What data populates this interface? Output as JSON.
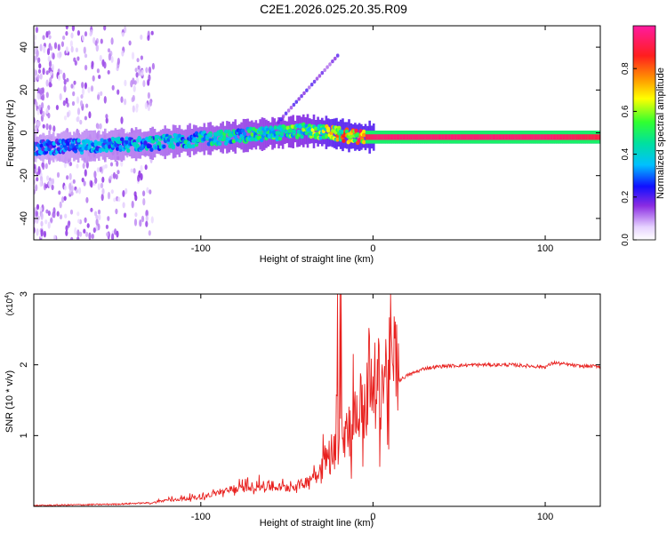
{
  "title": "C2E1.2026.025.20.35.R09",
  "chart_data": [
    {
      "type": "heatmap",
      "xlabel": "Height of straight line (km)",
      "ylabel": "Frequency (Hz)",
      "xlim": [
        -197,
        132
      ],
      "ylim": [
        -50,
        50
      ],
      "xticks": [
        -100,
        0,
        100
      ],
      "yticks": [
        -40,
        -20,
        0,
        20,
        40
      ],
      "colorbar": {
        "label": "Normalized spectral amplitude",
        "range": [
          0,
          1
        ],
        "ticks": [
          "0.0",
          "0.2",
          "0.4",
          "0.6",
          "0.8"
        ]
      },
      "ridge": {
        "x": [
          -197,
          -160,
          -130,
          -100,
          -70,
          -40,
          -25,
          -10,
          0,
          20,
          60,
          100,
          132
        ],
        "frequency": [
          -7,
          -6,
          -5,
          -3,
          -1,
          1,
          0,
          -2,
          -2,
          -2,
          -2,
          -2,
          -2
        ],
        "amplitude": [
          0.3,
          0.35,
          0.4,
          0.45,
          0.5,
          0.55,
          0.65,
          0.85,
          0.95,
          0.95,
          0.95,
          0.95,
          0.9
        ]
      }
    },
    {
      "type": "line",
      "xlabel": "Height of straight line (km)",
      "ylabel": "SNR (10 * v/v)",
      "y_multiplier": "(x10",
      "y_multiplier_exp": "4",
      "xlim": [
        -197,
        132
      ],
      "ylim": [
        0,
        3
      ],
      "xticks": [
        -100,
        0,
        100
      ],
      "yticks": [
        1,
        2,
        3
      ],
      "grid": false,
      "series": [
        {
          "color": "#e8201e",
          "x": [
            -197,
            -175,
            -150,
            -130,
            -120,
            -100,
            -90,
            -80,
            -70,
            -60,
            -50,
            -40,
            -30,
            -20,
            -15,
            -10,
            -5,
            0,
            10,
            20,
            30,
            40,
            60,
            80,
            100,
            105,
            120,
            132
          ],
          "y": [
            0.0,
            0.01,
            0.02,
            0.04,
            0.08,
            0.12,
            0.18,
            0.22,
            0.26,
            0.26,
            0.24,
            0.3,
            0.5,
            0.8,
            0.95,
            1.1,
            1.25,
            1.45,
            1.7,
            1.85,
            1.95,
            1.98,
            2.0,
            2.0,
            1.97,
            2.03,
            1.98,
            1.98
          ]
        }
      ]
    }
  ]
}
